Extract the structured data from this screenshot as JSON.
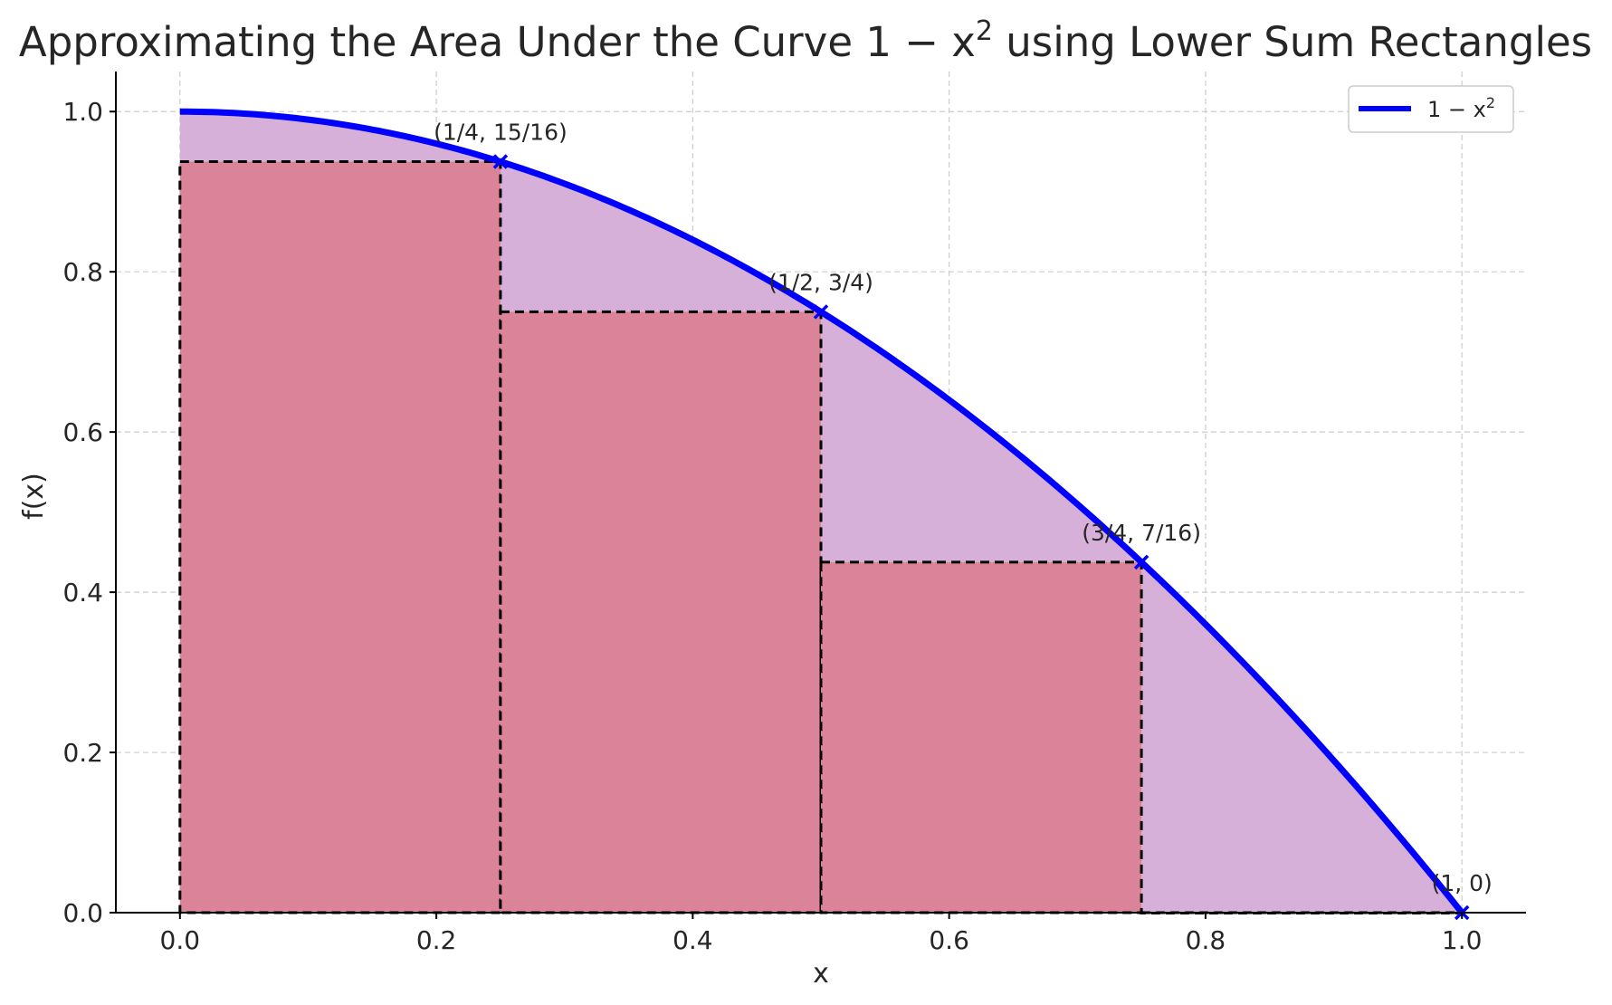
{
  "chart_data": {
    "type": "area",
    "title": "Approximating the Area Under the Curve 1 − x² using Lower Sum Rectangles",
    "title_prefix": "Approximating the Area Under the Curve ",
    "title_math_base": "1 − x",
    "title_math_sup": "2",
    "title_suffix": " using Lower Sum Rectangles",
    "xlabel": "x",
    "ylabel": "f(x)",
    "xlim": [
      -0.05,
      1.05
    ],
    "ylim": [
      0,
      1.05
    ],
    "xticks": [
      0.0,
      0.2,
      0.4,
      0.6,
      0.8,
      1.0
    ],
    "xtick_labels": [
      "0.0",
      "0.2",
      "0.4",
      "0.6",
      "0.8",
      "1.0"
    ],
    "yticks": [
      0.0,
      0.2,
      0.4,
      0.6,
      0.8,
      1.0
    ],
    "ytick_labels": [
      "0.0",
      "0.2",
      "0.4",
      "0.6",
      "0.8",
      "1.0"
    ],
    "grid": true,
    "legend_position": "top-right",
    "series": [
      {
        "name": "1 − x²",
        "legend_base": "1 − x",
        "legend_sup": "2",
        "function": "1 - x^2",
        "domain": [
          0,
          1
        ],
        "color": "#0000ff"
      }
    ],
    "area_fill_color": "#d7b0d9",
    "rectangles": [
      {
        "x0": 0.0,
        "x1": 0.25,
        "height": 0.9375
      },
      {
        "x0": 0.25,
        "x1": 0.5,
        "height": 0.75
      },
      {
        "x0": 0.5,
        "x1": 0.75,
        "height": 0.4375
      },
      {
        "x0": 0.75,
        "x1": 1.0,
        "height": 0.0
      }
    ],
    "rectangle_fill_color": "#db8398",
    "rectangle_edge_color": "#000000",
    "points": [
      {
        "x": 0.25,
        "y": 0.9375,
        "label": "(1/4, 15/16)"
      },
      {
        "x": 0.5,
        "y": 0.75,
        "label": "(1/2, 3/4)"
      },
      {
        "x": 0.75,
        "y": 0.4375,
        "label": "(3/4, 7/16)"
      },
      {
        "x": 1.0,
        "y": 0.0,
        "label": "(1, 0)"
      }
    ]
  }
}
